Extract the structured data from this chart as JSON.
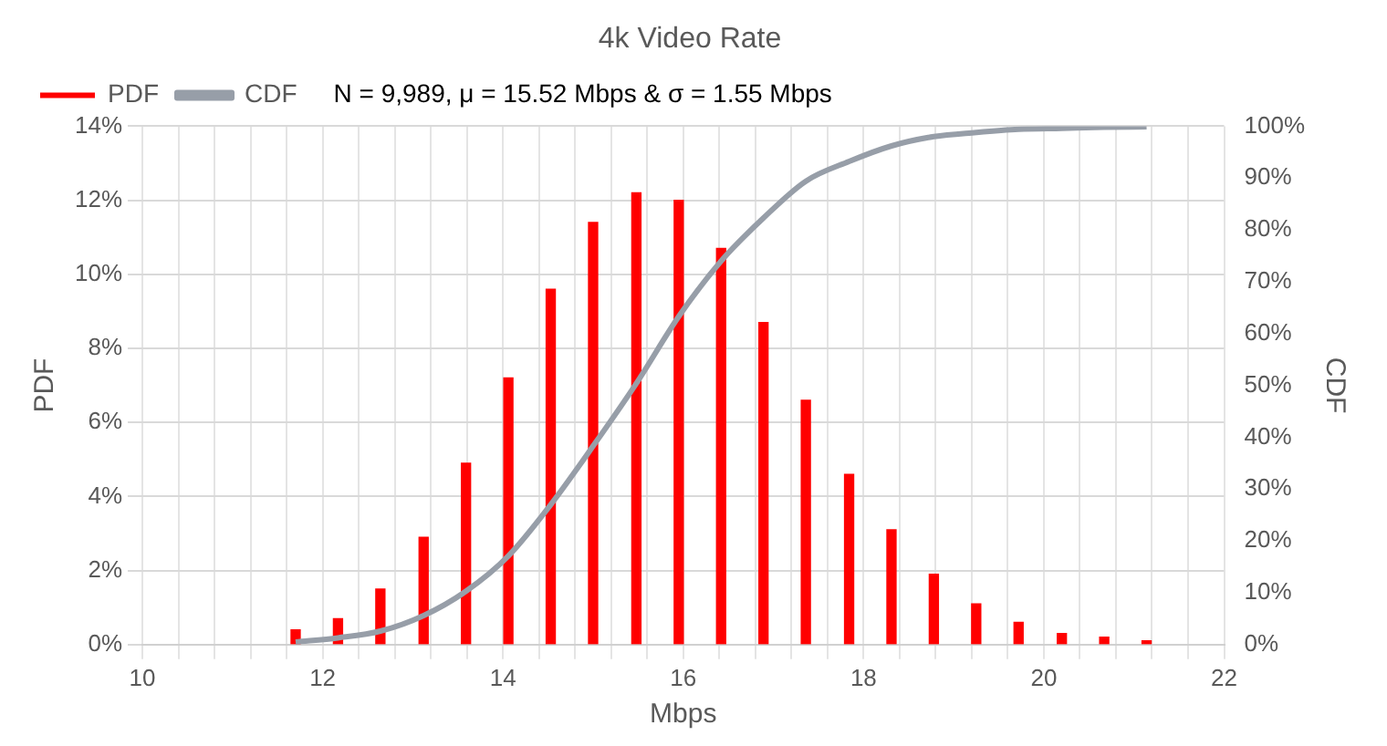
{
  "chart_data": {
    "type": "bar",
    "title": "4k Video Rate",
    "xlabel": "Mbps",
    "ylabel": "PDF",
    "y2label": "CDF",
    "annotations": [
      "N = 9,989, μ = 15.52 Mbps & σ = 1.55 Mbps"
    ],
    "x": [
      11.7,
      12.17,
      12.64,
      13.12,
      13.59,
      14.06,
      14.53,
      15.0,
      15.48,
      15.95,
      16.42,
      16.89,
      17.36,
      17.84,
      18.31,
      18.78,
      19.25,
      19.72,
      20.2,
      20.67,
      21.14
    ],
    "series": [
      {
        "name": "PDF",
        "color": "#ff0000",
        "values": [
          0.4,
          0.7,
          1.5,
          2.9,
          4.9,
          7.2,
          9.6,
          11.4,
          12.2,
          12.0,
          10.7,
          8.7,
          6.6,
          4.6,
          3.1,
          1.9,
          1.1,
          0.6,
          0.3,
          0.2,
          0.1
        ]
      },
      {
        "name": "CDF",
        "type": "line",
        "axis": "y2",
        "color": "#979ea8",
        "values": [
          0.5,
          1.3,
          2.6,
          5.6,
          10.3,
          17.1,
          27,
          38.3,
          50.4,
          63.3,
          74,
          82.3,
          89.4,
          93.2,
          96.2,
          98,
          98.8,
          99.4,
          99.6,
          99.8,
          99.9
        ]
      }
    ],
    "xlim": [
      10,
      22
    ],
    "xticks": [
      10,
      {
        "value": 10.4,
        "label": null
      },
      {
        "value": 10.8,
        "label": null
      },
      {
        "value": 11.2,
        "label": null
      },
      {
        "value": 11.6,
        "label": null
      },
      12,
      {
        "value": 12.4,
        "label": null
      },
      {
        "value": 12.8,
        "label": null
      },
      {
        "value": 13.2,
        "label": null
      },
      {
        "value": 13.6,
        "label": null
      },
      14,
      {
        "value": 14.4,
        "label": null
      },
      {
        "value": 14.8,
        "label": null
      },
      {
        "value": 15.2,
        "label": null
      },
      {
        "value": 15.6,
        "label": null
      },
      16,
      {
        "value": 16.4,
        "label": null
      },
      {
        "value": 16.8,
        "label": null
      },
      {
        "value": 17.2,
        "label": null
      },
      {
        "value": 17.6,
        "label": null
      },
      18,
      {
        "value": 18.4,
        "label": null
      },
      {
        "value": 18.8,
        "label": null
      },
      {
        "value": 19.2,
        "label": null
      },
      {
        "value": 19.6,
        "label": null
      },
      20,
      {
        "value": 20.4,
        "label": null
      },
      {
        "value": 20.8,
        "label": null
      },
      {
        "value": 21.2,
        "label": null
      },
      {
        "value": 21.6,
        "label": null
      },
      22
    ],
    "ylim": [
      0,
      14
    ],
    "yticks": [
      {
        "value": 0,
        "label": "0%"
      },
      {
        "value": 2,
        "label": "2%"
      },
      {
        "value": 4,
        "label": "4%"
      },
      {
        "value": 6,
        "label": "6%"
      },
      {
        "value": 8,
        "label": "8%"
      },
      {
        "value": 10,
        "label": "10%"
      },
      {
        "value": 12,
        "label": "12%"
      },
      {
        "value": 14,
        "label": "14%"
      }
    ],
    "y2lim": [
      0,
      100
    ],
    "y2ticks": [
      {
        "value": 0,
        "label": "0%"
      },
      {
        "value": 10,
        "label": "10%"
      },
      {
        "value": 20,
        "label": "20%"
      },
      {
        "value": 30,
        "label": "30%"
      },
      {
        "value": 40,
        "label": "40%"
      },
      {
        "value": 50,
        "label": "50%"
      },
      {
        "value": 60,
        "label": "60%"
      },
      {
        "value": 70,
        "label": "70%"
      },
      {
        "value": 80,
        "label": "80%"
      },
      {
        "value": 90,
        "label": "90%"
      },
      {
        "value": 100,
        "label": "100%"
      }
    ],
    "grid": true,
    "legend": "top",
    "marker": "none",
    "line_style": "solid"
  }
}
